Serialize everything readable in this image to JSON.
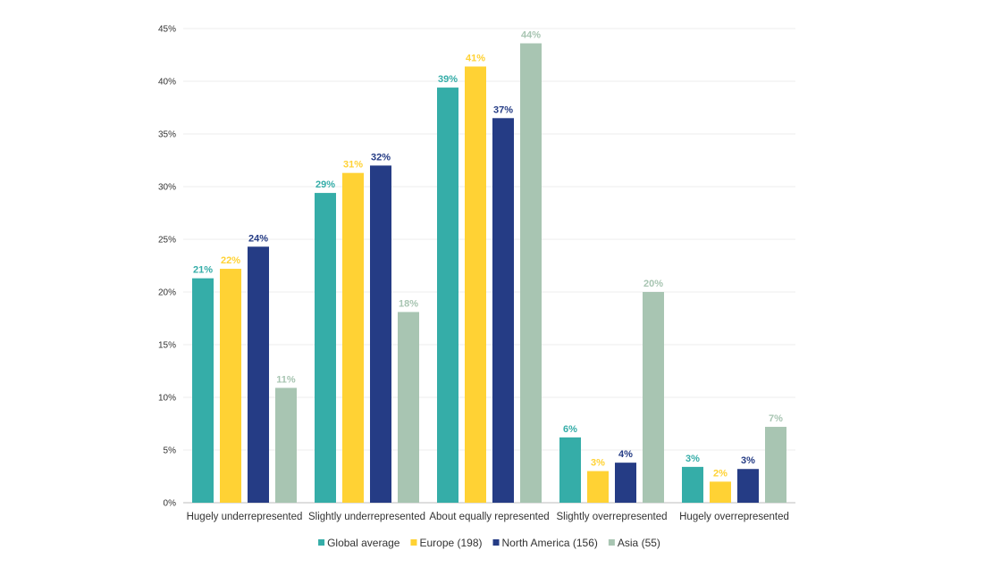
{
  "chart_data": {
    "type": "bar",
    "title": "",
    "xlabel": "",
    "ylabel": "",
    "ylim": [
      0,
      45
    ],
    "yticks": [
      0,
      5,
      10,
      15,
      20,
      25,
      30,
      35,
      40,
      45
    ],
    "ytick_labels": [
      "0%",
      "5%",
      "10%",
      "15%",
      "20%",
      "25%",
      "30%",
      "35%",
      "40%",
      "45%"
    ],
    "grid": true,
    "legend_position": "bottom",
    "categories": [
      "Hugely underrepresented",
      "Slightly underrepresented",
      "About equally represented",
      "Slightly overrepresented",
      "Hugely overrepresented"
    ],
    "series": [
      {
        "name": "Global average",
        "color": "#35ada8",
        "values": [
          21.3,
          29.4,
          39.4,
          6.2,
          3.4
        ],
        "labels": [
          "21%",
          "29%",
          "39%",
          "6%",
          "3%"
        ]
      },
      {
        "name": "Europe (198)",
        "color": "#ffd234",
        "values": [
          22.2,
          31.3,
          41.4,
          3.0,
          2.0
        ],
        "labels": [
          "22%",
          "31%",
          "41%",
          "3%",
          "2%"
        ]
      },
      {
        "name": "North America (156)",
        "color": "#253c85",
        "values": [
          24.3,
          32.0,
          36.5,
          3.8,
          3.2
        ],
        "labels": [
          "24%",
          "32%",
          "37%",
          "4%",
          "3%"
        ]
      },
      {
        "name": "Asia (55)",
        "color": "#a8c5b2",
        "values": [
          10.9,
          18.1,
          43.6,
          20.0,
          7.2
        ],
        "labels": [
          "11%",
          "18%",
          "44%",
          "20%",
          "7%"
        ]
      }
    ]
  }
}
